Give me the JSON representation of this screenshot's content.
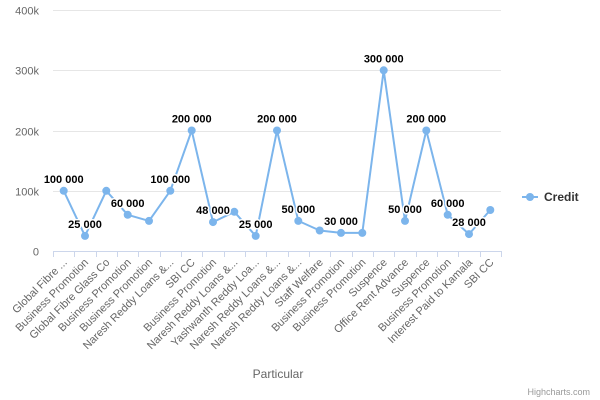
{
  "chart_data": {
    "type": "line",
    "title": "",
    "xlabel": "Particular",
    "ylabel": "",
    "ylim": [
      0,
      400000
    ],
    "y_ticks": [
      {
        "value": 0,
        "label": "0"
      },
      {
        "value": 100000,
        "label": "100k"
      },
      {
        "value": 200000,
        "label": "200k"
      },
      {
        "value": 300000,
        "label": "300k"
      },
      {
        "value": 400000,
        "label": "400k"
      }
    ],
    "categories": [
      "Global Fibre ...",
      "Business Promotion",
      "Global Fibre Glass Co",
      "Business Promotion",
      "Business Promotion",
      "Naresh Reddy Loans &...",
      "SBI CC",
      "Business Promotion",
      "Naresh Reddy Loans &...",
      "Yashwanth Reddy Loa...",
      "Naresh Reddy Loans &...",
      "Naresh Reddy Loans &...",
      "Staff Welfare",
      "Business Promotion",
      "Business Promotion",
      "Suspence",
      "Office Rent Advance",
      "Suspence",
      "Business Promotion",
      "Interest Paid to Kamala",
      "SBI CC"
    ],
    "series": [
      {
        "name": "Credit",
        "color": "#7cb5ec",
        "values": [
          100000,
          25000,
          100000,
          60000,
          50000,
          100000,
          200000,
          48000,
          65000,
          25000,
          200000,
          50000,
          34000,
          30000,
          30000,
          300000,
          50000,
          200000,
          60000,
          28000,
          68000
        ],
        "data_labels": [
          "100 000",
          "25 000",
          "",
          "60 000",
          "",
          "100 000",
          "200 000",
          "48 000",
          "",
          "25 000",
          "200 000",
          "50 000",
          "",
          "30 000",
          "",
          "300 000",
          "50 000",
          "200 000",
          "60 000",
          "28 000",
          ""
        ]
      }
    ],
    "grid": true,
    "legend": {
      "position": "right",
      "entries": [
        "Credit"
      ]
    },
    "credits": "Highcharts.com"
  }
}
